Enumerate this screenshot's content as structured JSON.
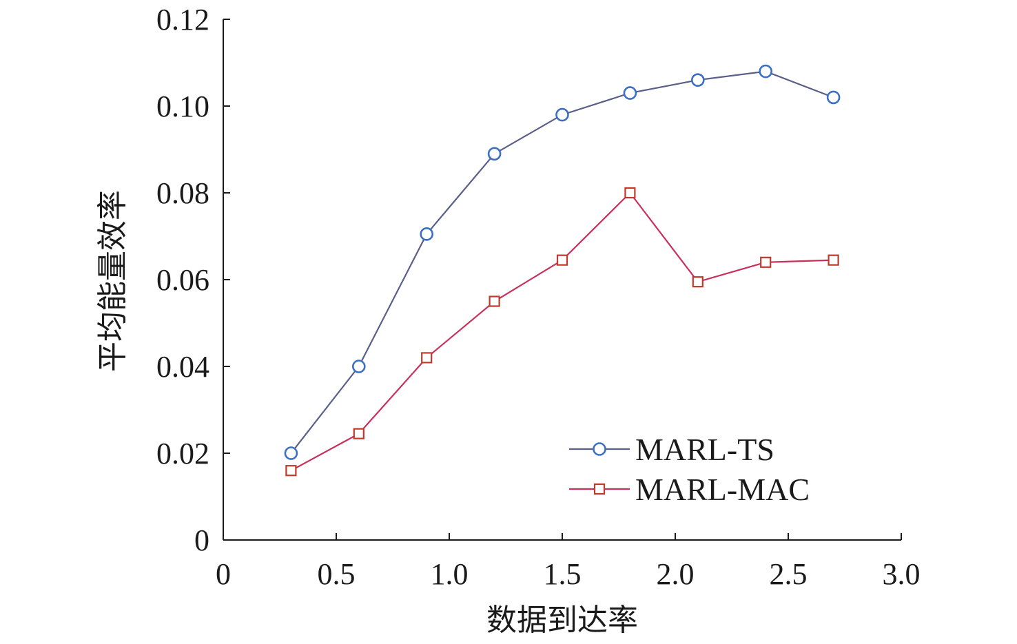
{
  "chart_data": {
    "type": "line",
    "title": "",
    "xlabel": "数据到达率",
    "ylabel": "平均能量效率",
    "xlim": [
      0,
      3.0
    ],
    "ylim": [
      0,
      0.12
    ],
    "x_ticks": [
      0,
      0.5,
      1.0,
      1.5,
      2.0,
      2.5,
      3.0
    ],
    "x_tick_labels": [
      "0",
      "0.5",
      "1.0",
      "1.5",
      "2.0",
      "2.5",
      "3.0"
    ],
    "y_ticks": [
      0,
      0.02,
      0.04,
      0.06,
      0.08,
      0.1,
      0.12
    ],
    "y_tick_labels": [
      "0",
      "0.02",
      "0.04",
      "0.06",
      "0.08",
      "0.10",
      "0.12"
    ],
    "grid": false,
    "legend_position": "bottom-right",
    "x": [
      0.3,
      0.6,
      0.9,
      1.2,
      1.5,
      1.8,
      2.1,
      2.4,
      2.7
    ],
    "series": [
      {
        "name": "MARL-TS",
        "marker": "circle",
        "line_color": "#5a5f8a",
        "marker_color": "#3a6fc4",
        "values": [
          0.02,
          0.04,
          0.0705,
          0.089,
          0.098,
          0.103,
          0.106,
          0.108,
          0.102
        ]
      },
      {
        "name": "MARL-MAC",
        "marker": "square",
        "line_color": "#c8305a",
        "marker_color": "#c0392b",
        "values": [
          0.016,
          0.0245,
          0.042,
          0.055,
          0.0645,
          0.08,
          0.0595,
          0.064,
          0.0645
        ]
      }
    ]
  }
}
